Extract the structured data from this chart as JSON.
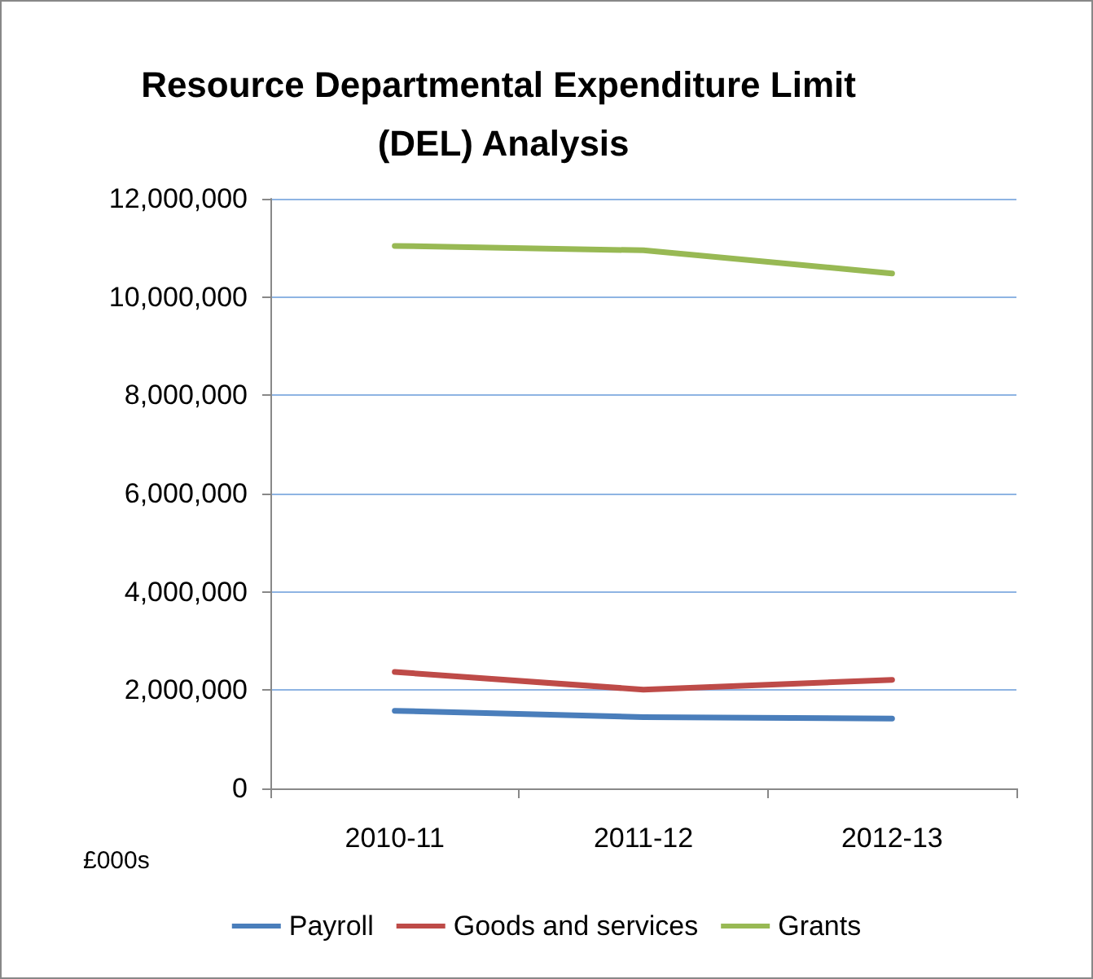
{
  "chart_data": {
    "type": "line",
    "title": "Resource Departmental Expenditure Limit (DEL) Analysis",
    "annotations": [
      "£000s"
    ],
    "categories": [
      "2010-11",
      "2011-12",
      "2012-13"
    ],
    "series": [
      {
        "name": "Payroll",
        "color": "#4a7ebb",
        "values": [
          1580000,
          1450000,
          1420000
        ]
      },
      {
        "name": "Goods and services",
        "color": "#be4b48",
        "values": [
          2370000,
          2010000,
          2210000
        ]
      },
      {
        "name": "Grants",
        "color": "#98b954",
        "values": [
          11040000,
          10950000,
          10480000
        ]
      }
    ],
    "ylim": [
      0,
      12000000
    ],
    "yticks": [
      0,
      {
        "value": 2000000,
        "label": "2,000,000"
      },
      {
        "value": 4000000,
        "label": "4,000,000"
      },
      {
        "value": 6000000,
        "label": "6,000,000"
      },
      {
        "value": 8000000,
        "label": "8,000,000"
      },
      {
        "value": 10000000,
        "label": "10,000,000"
      },
      {
        "value": 12000000,
        "label": "12,000,000"
      }
    ],
    "grid": "y",
    "legend": "bottom",
    "marker": "none",
    "line_style": "solid"
  }
}
